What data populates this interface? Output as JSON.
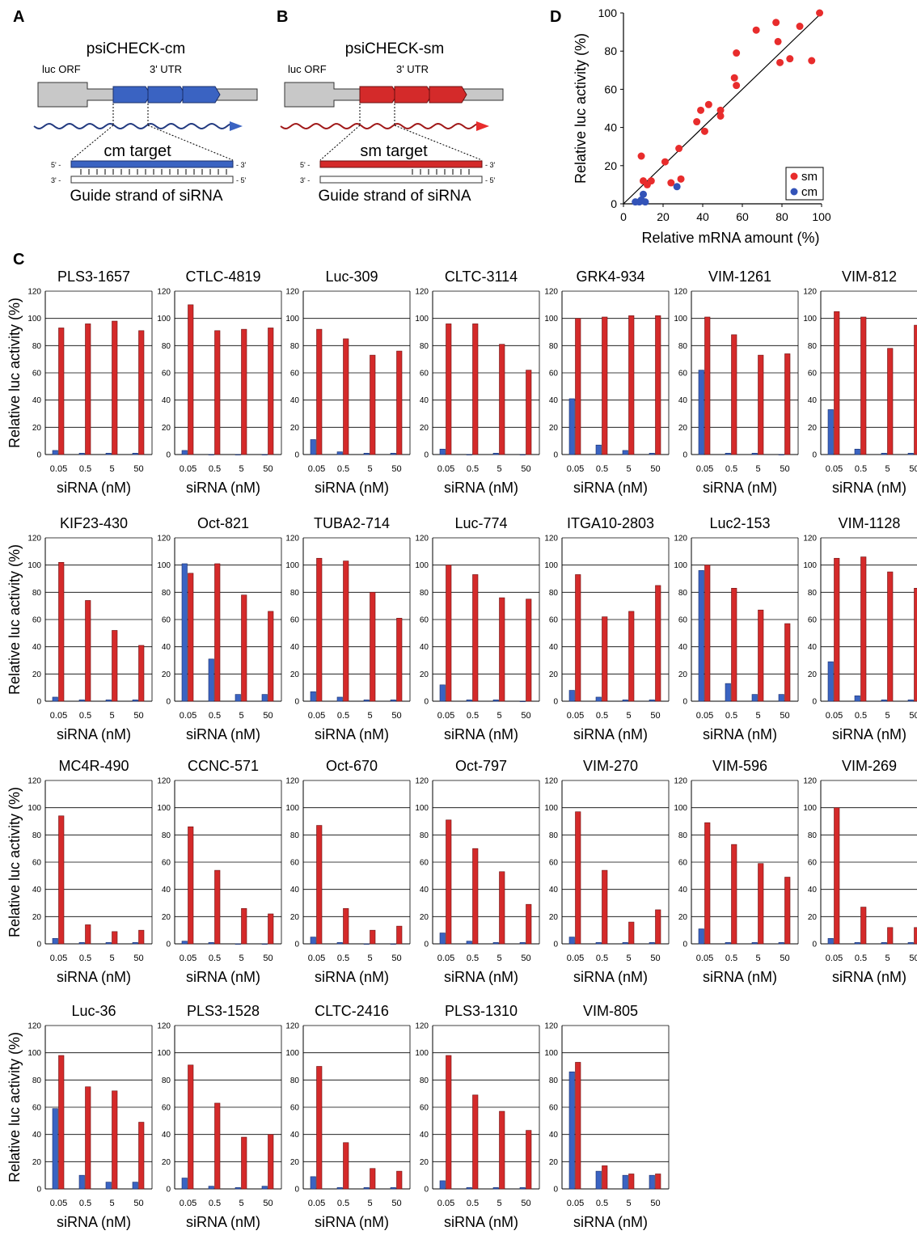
{
  "panels": {
    "A": {
      "letter": "A",
      "construct": "psiCHECK-cm",
      "orf": "luc ORF",
      "utr": "3' UTR",
      "target": "cm target",
      "guide": "Guide strand of siRNA",
      "p5a": "5' -",
      "p3a": "- 3'",
      "p3b": "3' -",
      "p5b": "- 5'",
      "color": "#3a63c2"
    },
    "B": {
      "letter": "B",
      "construct": "psiCHECK-sm",
      "orf": "luc ORF",
      "utr": "3' UTR",
      "target": "sm target",
      "guide": "Guide strand of siRNA",
      "p5a": "5' -",
      "p3a": "- 3'",
      "p3b": "3' -",
      "p5b": "- 5'",
      "color": "#d42a2a"
    },
    "C": {
      "letter": "C"
    },
    "D": {
      "letter": "D"
    }
  },
  "chart_data": [
    {
      "id": "D",
      "type": "scatter",
      "xlabel": "Relative mRNA amount (%)",
      "ylabel": "Relative luc activity (%)",
      "xlim": [
        0,
        100
      ],
      "ylim": [
        0,
        100
      ],
      "xticks": [
        "0",
        "20",
        "40",
        "60",
        "80",
        "100"
      ],
      "yticks": [
        "0",
        "20",
        "40",
        "60",
        "80",
        "100"
      ],
      "legend": "bottom-right",
      "line": [
        [
          0,
          0
        ],
        [
          100,
          100
        ]
      ],
      "series": [
        {
          "name": "sm",
          "color": "#e82c2c",
          "points": [
            [
              9,
              25
            ],
            [
              10,
              12
            ],
            [
              12,
              10
            ],
            [
              14,
              12
            ],
            [
              21,
              22
            ],
            [
              24,
              11
            ],
            [
              28,
              29
            ],
            [
              29,
              13
            ],
            [
              37,
              43
            ],
            [
              39,
              49
            ],
            [
              41,
              38
            ],
            [
              43,
              52
            ],
            [
              49,
              49
            ],
            [
              49,
              46
            ],
            [
              56,
              66
            ],
            [
              57,
              62
            ],
            [
              57,
              79
            ],
            [
              67,
              91
            ],
            [
              77,
              95
            ],
            [
              78,
              85
            ],
            [
              79,
              74
            ],
            [
              84,
              76
            ],
            [
              89,
              93
            ],
            [
              95,
              75
            ],
            [
              99,
              100
            ]
          ]
        },
        {
          "name": "cm",
          "color": "#3353b8",
          "points": [
            [
              6,
              1
            ],
            [
              8,
              1
            ],
            [
              9,
              2
            ],
            [
              10,
              5
            ],
            [
              11,
              1
            ],
            [
              27,
              9
            ]
          ]
        }
      ]
    },
    {
      "id": "C",
      "type": "bar",
      "categories": [
        "0.05",
        "0.5",
        "5",
        "50"
      ],
      "xlabel": "siRNA (nM)",
      "ylabel": "Relative luc activity (%)",
      "ylim": [
        0,
        120
      ],
      "yticks": [
        "0",
        "20",
        "40",
        "60",
        "80",
        "100",
        "120"
      ],
      "colors": {
        "cm": "#3a63c2",
        "sm": "#d42a2a"
      },
      "charts": [
        {
          "title": "PLS3-1657",
          "cm": [
            3,
            1,
            1,
            1
          ],
          "sm": [
            93,
            96,
            98,
            91
          ]
        },
        {
          "title": "CTLC-4819",
          "cm": [
            3,
            0,
            0,
            0
          ],
          "sm": [
            110,
            91,
            92,
            93
          ]
        },
        {
          "title": "Luc-309",
          "cm": [
            11,
            2,
            1,
            1
          ],
          "sm": [
            92,
            85,
            73,
            76
          ]
        },
        {
          "title": "CLTC-3114",
          "cm": [
            4,
            0,
            1,
            0
          ],
          "sm": [
            96,
            96,
            81,
            62
          ]
        },
        {
          "title": "GRK4-934",
          "cm": [
            41,
            7,
            3,
            1
          ],
          "sm": [
            100,
            101,
            102,
            102
          ]
        },
        {
          "title": "VIM-1261",
          "cm": [
            62,
            1,
            1,
            0
          ],
          "sm": [
            101,
            88,
            73,
            74
          ]
        },
        {
          "title": "VIM-812",
          "cm": [
            33,
            4,
            1,
            1
          ],
          "sm": [
            105,
            101,
            78,
            95
          ]
        },
        {
          "title": "KIF23-430",
          "cm": [
            3,
            1,
            1,
            1
          ],
          "sm": [
            102,
            74,
            52,
            41
          ]
        },
        {
          "title": "Oct-821",
          "cm": [
            101,
            31,
            5,
            5
          ],
          "sm": [
            94,
            101,
            78,
            66
          ]
        },
        {
          "title": "TUBA2-714",
          "cm": [
            7,
            3,
            1,
            1
          ],
          "sm": [
            105,
            103,
            80,
            61
          ]
        },
        {
          "title": "Luc-774",
          "cm": [
            12,
            1,
            1,
            0
          ],
          "sm": [
            100,
            93,
            76,
            75
          ]
        },
        {
          "title": "ITGA10-2803",
          "cm": [
            8,
            3,
            1,
            1
          ],
          "sm": [
            93,
            62,
            66,
            85
          ]
        },
        {
          "title": "Luc2-153",
          "cm": [
            96,
            13,
            5,
            5
          ],
          "sm": [
            100,
            83,
            67,
            57
          ]
        },
        {
          "title": "VIM-1128",
          "cm": [
            29,
            4,
            1,
            1
          ],
          "sm": [
            105,
            106,
            95,
            83
          ]
        },
        {
          "title": "MC4R-490",
          "cm": [
            4,
            1,
            1,
            1
          ],
          "sm": [
            94,
            14,
            9,
            10
          ]
        },
        {
          "title": "CCNC-571",
          "cm": [
            2,
            1,
            0,
            0
          ],
          "sm": [
            86,
            54,
            26,
            22
          ]
        },
        {
          "title": "Oct-670",
          "cm": [
            5,
            1,
            0,
            0
          ],
          "sm": [
            87,
            26,
            10,
            13
          ]
        },
        {
          "title": "Oct-797",
          "cm": [
            8,
            2,
            1,
            1
          ],
          "sm": [
            91,
            70,
            53,
            29
          ]
        },
        {
          "title": "VIM-270",
          "cm": [
            5,
            1,
            1,
            1
          ],
          "sm": [
            97,
            54,
            16,
            25
          ]
        },
        {
          "title": "VIM-596",
          "cm": [
            11,
            1,
            1,
            1
          ],
          "sm": [
            89,
            73,
            59,
            49
          ]
        },
        {
          "title": "VIM-269",
          "cm": [
            4,
            1,
            1,
            1
          ],
          "sm": [
            100,
            27,
            12,
            12
          ]
        },
        {
          "title": "Luc-36",
          "cm": [
            59,
            10,
            5,
            5
          ],
          "sm": [
            98,
            75,
            72,
            49
          ]
        },
        {
          "title": "PLS3-1528",
          "cm": [
            8,
            2,
            1,
            2
          ],
          "sm": [
            91,
            63,
            38,
            40
          ]
        },
        {
          "title": "CLTC-2416",
          "cm": [
            9,
            1,
            1,
            1
          ],
          "sm": [
            90,
            34,
            15,
            13
          ]
        },
        {
          "title": "PLS3-1310",
          "cm": [
            6,
            1,
            1,
            1
          ],
          "sm": [
            98,
            69,
            57,
            43
          ]
        },
        {
          "title": "VIM-805",
          "cm": [
            86,
            13,
            10,
            10
          ],
          "sm": [
            93,
            17,
            11,
            11
          ]
        }
      ]
    }
  ]
}
